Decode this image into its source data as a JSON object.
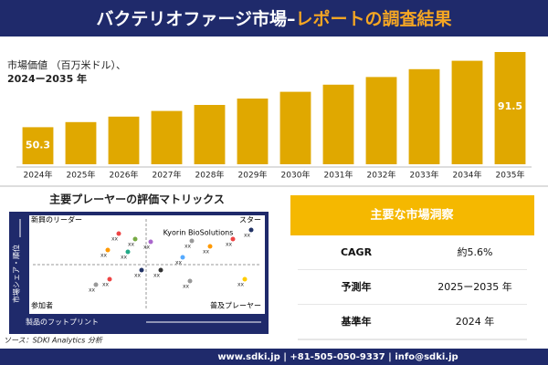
{
  "header": {
    "title_main": "バクテリオファージ市場–",
    "title_sub": "レポートの調査結果"
  },
  "chart_data": {
    "type": "bar",
    "title_lines": [
      "市場価値 （百万米ドル）、",
      "2024ー2035 年"
    ],
    "categories": [
      "2024年",
      "2025年",
      "2026年",
      "2027年",
      "2028年",
      "2029年",
      "2030年",
      "2031年",
      "2032年",
      "2033年",
      "2034年",
      "2035年"
    ],
    "values": [
      50.3,
      53.1,
      56.1,
      59.2,
      62.5,
      66.0,
      69.7,
      73.6,
      77.8,
      82.1,
      86.7,
      91.5
    ],
    "value_labels": [
      "50.3",
      null,
      null,
      null,
      null,
      null,
      null,
      null,
      null,
      null,
      null,
      "91.5"
    ],
    "color": "#e0a800",
    "ylim": [
      30,
      95
    ]
  },
  "matrix": {
    "title": "主要プレーヤーの評価マトリックス",
    "quadrants": [
      "新興のリーダー",
      "スター",
      "参加者",
      "普及プレーヤー"
    ],
    "y_axis": "市場シェア・順位",
    "x_axis": "製品のフットプリント",
    "highlight": "Kyorin BioSolutions",
    "point_labels": [
      "xx",
      "xx",
      "xx",
      "xx",
      "xx",
      "xx",
      "xx",
      "xx",
      "xx",
      "xx",
      "xx",
      "xx",
      "xx",
      "xx",
      "xx",
      "xx"
    ]
  },
  "insights": {
    "title": "主要な市場洞察",
    "rows": [
      [
        "CAGR",
        "約5.6%"
      ],
      [
        "予測年",
        "2025ー2035 年"
      ],
      [
        "基準年",
        "2024 年"
      ]
    ]
  },
  "source": "ソース：SDKI Analytics 分析",
  "footer": "www.sdki.jp | +81-505-050-9337 | info@sdki.jp"
}
